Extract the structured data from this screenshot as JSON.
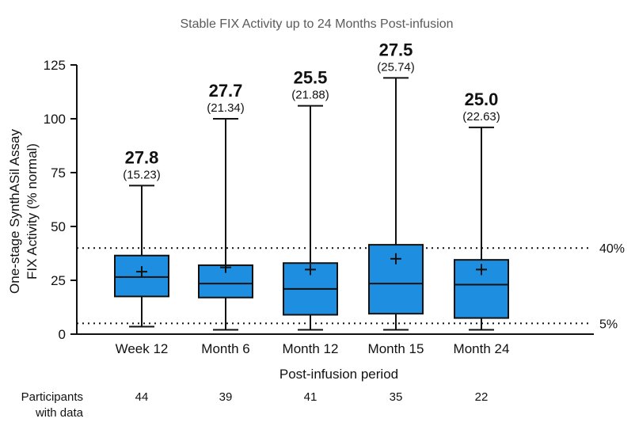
{
  "chart_data": {
    "type": "box",
    "title": "Stable FIX Activity up to 24 Months Post-infusion",
    "xlabel": "Post-infusion period",
    "ylabel_lines": [
      "One-stage SynthASil Assay",
      "FIX Activity (% normal)"
    ],
    "ylim": [
      0,
      125
    ],
    "yticks": [
      "0",
      "25",
      "50",
      "75",
      "100",
      "125"
    ],
    "grid": false,
    "categories": [
      "Week 12",
      "Month 6",
      "Month 12",
      "Month 15",
      "Month 24"
    ],
    "boxes": [
      {
        "whisker_low": 3.5,
        "q1": 17.5,
        "median": 26.5,
        "q3": 36.5,
        "whisker_high": 69,
        "mean": 29
      },
      {
        "whisker_low": 2,
        "q1": 17,
        "median": 23.5,
        "q3": 32,
        "whisker_high": 100,
        "mean": 31
      },
      {
        "whisker_low": 2,
        "q1": 9,
        "median": 21,
        "q3": 33,
        "whisker_high": 106,
        "mean": 30
      },
      {
        "whisker_low": 2,
        "q1": 9.5,
        "median": 23.5,
        "q3": 41.5,
        "whisker_high": 119,
        "mean": 35
      },
      {
        "whisker_low": 2,
        "q1": 7.5,
        "median": 23,
        "q3": 34.5,
        "whisker_high": 96,
        "mean": 30
      }
    ],
    "annotations_main": [
      "27.8",
      "27.7",
      "25.5",
      "27.5",
      "25.0"
    ],
    "annotations_sub": [
      "(15.23)",
      "(21.34)",
      "(21.88)",
      "(25.74)",
      "(22.63)"
    ],
    "reference_lines": [
      {
        "value": 40,
        "label": "40%"
      },
      {
        "value": 5,
        "label": "5%"
      }
    ],
    "box_color": "#1e8fe0",
    "participants_label_lines": [
      "Participants",
      "with data"
    ],
    "participants": [
      "44",
      "39",
      "41",
      "35",
      "22"
    ]
  }
}
